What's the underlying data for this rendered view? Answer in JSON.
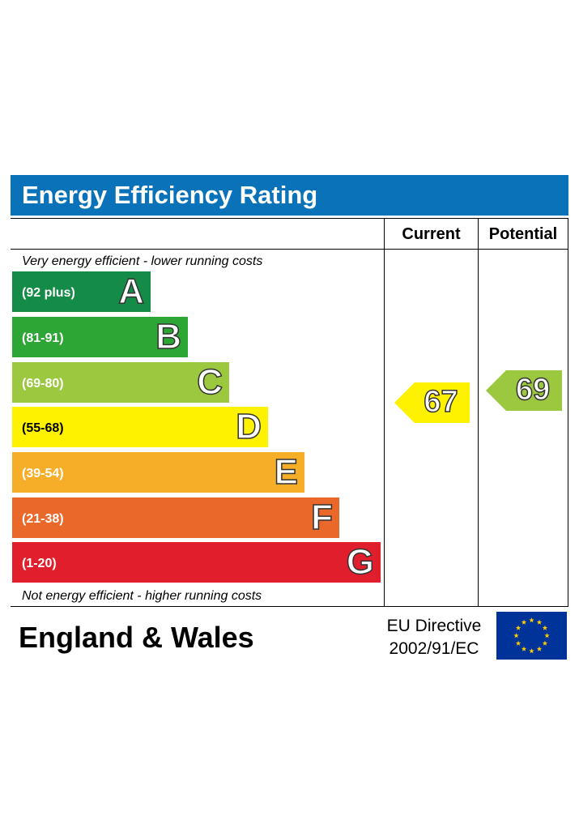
{
  "header": {
    "title": "Energy Efficiency Rating"
  },
  "columns": {
    "current": "Current",
    "potential": "Potential"
  },
  "notes": {
    "top": "Very energy efficient - lower running costs",
    "bottom": "Not energy efficient - higher running costs"
  },
  "chart_data": {
    "type": "bar",
    "title": "Energy Efficiency Rating",
    "categories": [
      "A",
      "B",
      "C",
      "D",
      "E",
      "F",
      "G"
    ],
    "bands": [
      {
        "letter": "A",
        "range": "(92 plus)",
        "color": "#148c47"
      },
      {
        "letter": "B",
        "range": "(81-91)",
        "color": "#2ea636"
      },
      {
        "letter": "C",
        "range": "(69-80)",
        "color": "#9bc83f"
      },
      {
        "letter": "D",
        "range": "(55-68)",
        "color": "#fff200"
      },
      {
        "letter": "E",
        "range": "(39-54)",
        "color": "#f6ad27"
      },
      {
        "letter": "F",
        "range": "(21-38)",
        "color": "#ea6829"
      },
      {
        "letter": "G",
        "range": "(1-20)",
        "color": "#e11e2b"
      }
    ],
    "current": {
      "label": "Current",
      "value": 67,
      "band": "D",
      "color": "#fff200"
    },
    "potential": {
      "label": "Potential",
      "value": 69,
      "band": "C",
      "color": "#9bc83f"
    }
  },
  "footer": {
    "region": "England & Wales",
    "directive_line1": "EU Directive",
    "directive_line2": "2002/91/EC",
    "flag_icon": "eu-flag-icon",
    "flag_color": "#003399",
    "star_color": "#ffcc00"
  }
}
